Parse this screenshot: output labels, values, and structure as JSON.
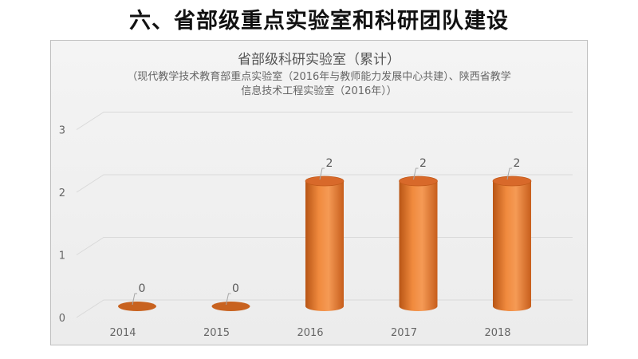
{
  "page": {
    "title": "六、省部级重点实验室和科研团队建设"
  },
  "chart_data": {
    "type": "bar",
    "title": "省部级科研实验室（累计）",
    "subtitle_lines": [
      "（现代教学技术教育部重点实验室（2016年与教师能力发展中心共建）、陕西省教学",
      "信息技术工程实验室（2016年））"
    ],
    "categories": [
      "2014",
      "2015",
      "2016",
      "2017",
      "2018"
    ],
    "values": [
      0,
      0,
      2,
      2,
      2
    ],
    "ylim": [
      0,
      3
    ],
    "yticks": [
      "0",
      "1",
      "2",
      "3"
    ],
    "grid": true,
    "bar_color": "#ed7d31",
    "xlabel": "",
    "ylabel": ""
  }
}
